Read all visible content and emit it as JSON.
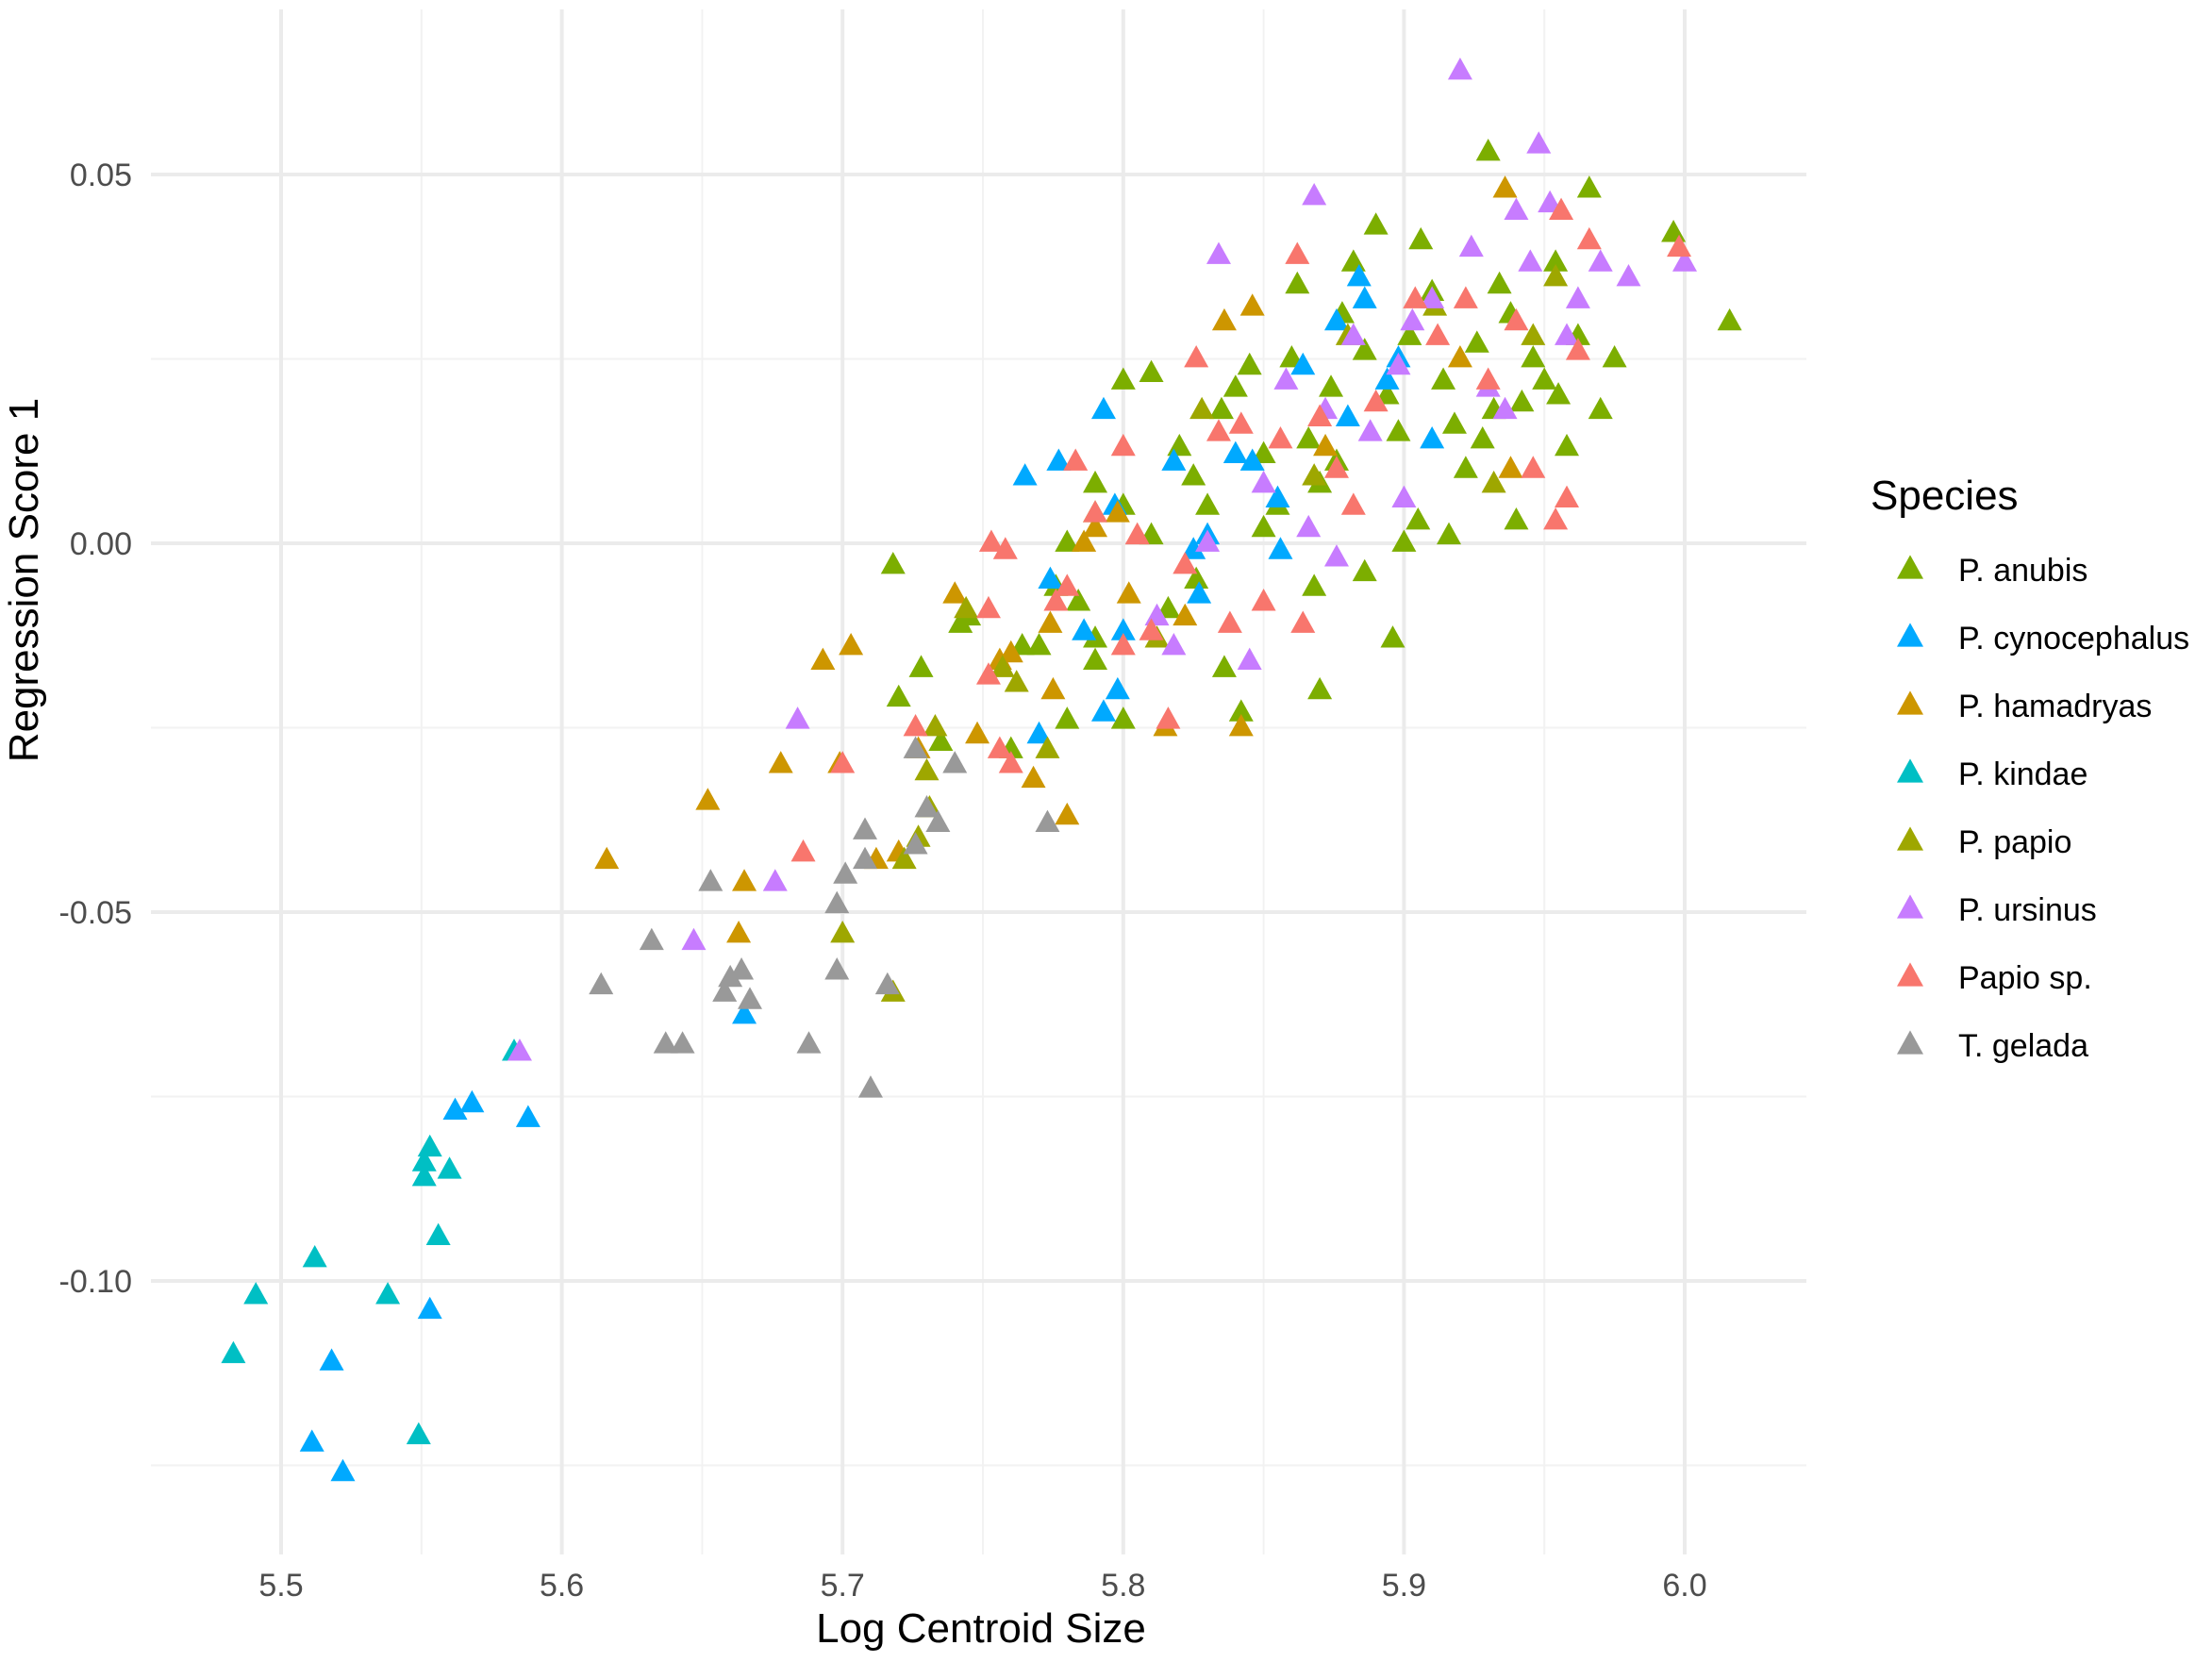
{
  "chart_data": {
    "type": "scatter",
    "xlabel": "Log Centroid Size",
    "ylabel": "Regression Score 1",
    "xlim": [
      5.46,
      6.04
    ],
    "ylim": [
      -0.137,
      0.07
    ],
    "xticks": [
      5.5,
      5.6,
      5.7,
      5.8,
      5.9,
      6.0
    ],
    "xtick_labels": [
      "5.5",
      "5.6",
      "5.7",
      "5.8",
      "5.9",
      "6.0"
    ],
    "yticks": [
      -0.1,
      -0.05,
      0.0,
      0.05
    ],
    "ytick_labels": [
      "-0.10",
      "-0.05",
      "0.00",
      "0.05"
    ],
    "grid": true,
    "marker": "triangle",
    "legend": {
      "title": "Species",
      "position": "right"
    },
    "series": [
      {
        "name": "P. anubis",
        "color": "#7CAE00",
        "points": [
          [
            5.718,
            -0.003
          ],
          [
            5.745,
            -0.01
          ],
          [
            5.728,
            -0.017
          ],
          [
            5.72,
            -0.021
          ],
          [
            5.78,
            0.0
          ],
          [
            5.79,
            -0.013
          ],
          [
            5.8,
            0.022
          ],
          [
            5.81,
            0.023
          ],
          [
            5.79,
            0.008
          ],
          [
            5.8,
            0.005
          ],
          [
            5.82,
            0.013
          ],
          [
            5.825,
            0.009
          ],
          [
            5.83,
            0.005
          ],
          [
            5.835,
            0.018
          ],
          [
            5.84,
            0.021
          ],
          [
            5.845,
            0.024
          ],
          [
            5.85,
            0.012
          ],
          [
            5.855,
            0.005
          ],
          [
            5.86,
            0.025
          ],
          [
            5.862,
            0.035
          ],
          [
            5.866,
            0.014
          ],
          [
            5.87,
            0.008
          ],
          [
            5.874,
            0.021
          ],
          [
            5.878,
            0.031
          ],
          [
            5.882,
            0.038
          ],
          [
            5.886,
            0.026
          ],
          [
            5.89,
            0.043
          ],
          [
            5.894,
            0.02
          ],
          [
            5.898,
            0.015
          ],
          [
            5.902,
            0.028
          ],
          [
            5.906,
            0.041
          ],
          [
            5.91,
            0.034
          ],
          [
            5.914,
            0.022
          ],
          [
            5.918,
            0.016
          ],
          [
            5.922,
            0.01
          ],
          [
            5.926,
            0.027
          ],
          [
            5.93,
            0.053
          ],
          [
            5.934,
            0.035
          ],
          [
            5.938,
            0.031
          ],
          [
            5.942,
            0.019
          ],
          [
            5.946,
            0.025
          ],
          [
            5.95,
            0.022
          ],
          [
            5.954,
            0.038
          ],
          [
            5.958,
            0.013
          ],
          [
            5.962,
            0.028
          ],
          [
            5.966,
            0.048
          ],
          [
            5.97,
            0.018
          ],
          [
            5.975,
            0.025
          ],
          [
            5.996,
            0.042
          ],
          [
            6.016,
            0.03
          ],
          [
            5.94,
            0.003
          ],
          [
            5.916,
            0.001
          ],
          [
            5.9,
            0.0
          ],
          [
            5.896,
            -0.013
          ],
          [
            5.87,
            -0.02
          ],
          [
            5.868,
            -0.006
          ],
          [
            5.886,
            -0.004
          ],
          [
            5.842,
            -0.023
          ],
          [
            5.836,
            -0.017
          ],
          [
            5.826,
            -0.005
          ],
          [
            5.816,
            -0.009
          ],
          [
            5.8,
            -0.024
          ],
          [
            5.79,
            -0.016
          ],
          [
            5.784,
            -0.008
          ],
          [
            5.776,
            -0.006
          ],
          [
            5.77,
            -0.014
          ],
          [
            5.78,
            -0.024
          ],
          [
            5.76,
            -0.028
          ],
          [
            5.742,
            -0.011
          ],
          [
            5.735,
            -0.027
          ],
          [
            5.764,
            -0.014
          ],
          [
            5.81,
            0.001
          ],
          [
            5.85,
            0.002
          ],
          [
            5.876,
            0.011
          ],
          [
            5.905,
            0.003
          ],
          [
            5.932,
            0.018
          ],
          [
            5.955,
            0.02
          ],
          [
            5.928,
            0.014
          ]
        ]
      },
      {
        "name": "P. cynocephalus",
        "color": "#00A9FF",
        "points": [
          [
            5.553,
            -0.104
          ],
          [
            5.518,
            -0.111
          ],
          [
            5.511,
            -0.122
          ],
          [
            5.522,
            -0.126
          ],
          [
            5.562,
            -0.077
          ],
          [
            5.568,
            -0.076
          ],
          [
            5.588,
            -0.078
          ],
          [
            5.665,
            -0.064
          ],
          [
            5.765,
            0.009
          ],
          [
            5.777,
            0.011
          ],
          [
            5.793,
            0.018
          ],
          [
            5.797,
            0.005
          ],
          [
            5.8,
            -0.012
          ],
          [
            5.798,
            -0.02
          ],
          [
            5.793,
            -0.023
          ],
          [
            5.77,
            -0.026
          ],
          [
            5.774,
            -0.005
          ],
          [
            5.786,
            -0.012
          ],
          [
            5.818,
            0.011
          ],
          [
            5.825,
            -0.001
          ],
          [
            5.827,
            -0.007
          ],
          [
            5.84,
            0.012
          ],
          [
            5.846,
            0.011
          ],
          [
            5.855,
            0.006
          ],
          [
            5.856,
            -0.001
          ],
          [
            5.864,
            0.024
          ],
          [
            5.876,
            0.03
          ],
          [
            5.88,
            0.017
          ],
          [
            5.884,
            0.036
          ],
          [
            5.886,
            0.033
          ],
          [
            5.894,
            0.022
          ],
          [
            5.898,
            0.025
          ],
          [
            5.91,
            0.014
          ],
          [
            5.83,
            0.001
          ]
        ]
      },
      {
        "name": "P. hamadryas",
        "color": "#CD9600",
        "points": [
          [
            5.616,
            -0.043
          ],
          [
            5.652,
            -0.035
          ],
          [
            5.665,
            -0.046
          ],
          [
            5.663,
            -0.053
          ],
          [
            5.678,
            -0.03
          ],
          [
            5.693,
            -0.016
          ],
          [
            5.703,
            -0.014
          ],
          [
            5.699,
            -0.03
          ],
          [
            5.712,
            -0.043
          ],
          [
            5.72,
            -0.042
          ],
          [
            5.727,
            -0.028
          ],
          [
            5.74,
            -0.007
          ],
          [
            5.748,
            -0.026
          ],
          [
            5.76,
            -0.015
          ],
          [
            5.768,
            -0.032
          ],
          [
            5.775,
            -0.02
          ],
          [
            5.78,
            -0.037
          ],
          [
            5.786,
            0.0
          ],
          [
            5.798,
            0.004
          ],
          [
            5.802,
            -0.007
          ],
          [
            5.815,
            -0.025
          ],
          [
            5.822,
            -0.01
          ],
          [
            5.836,
            0.03
          ],
          [
            5.842,
            -0.025
          ],
          [
            5.846,
            0.032
          ],
          [
            5.872,
            0.013
          ],
          [
            5.92,
            0.025
          ],
          [
            5.936,
            0.048
          ],
          [
            5.938,
            0.01
          ],
          [
            5.774,
            -0.011
          ],
          [
            5.756,
            -0.016
          ],
          [
            5.79,
            0.002
          ]
        ]
      },
      {
        "name": "P. kindae",
        "color": "#00BFC4",
        "points": [
          [
            5.483,
            -0.11
          ],
          [
            5.491,
            -0.102
          ],
          [
            5.512,
            -0.097
          ],
          [
            5.538,
            -0.102
          ],
          [
            5.549,
            -0.121
          ],
          [
            5.551,
            -0.086
          ],
          [
            5.553,
            -0.082
          ],
          [
            5.556,
            -0.094
          ],
          [
            5.56,
            -0.085
          ],
          [
            5.583,
            -0.069
          ],
          [
            5.551,
            -0.084
          ]
        ]
      },
      {
        "name": "P. papio",
        "color": "#9EA700",
        "points": [
          [
            5.7,
            -0.053
          ],
          [
            5.718,
            -0.061
          ],
          [
            5.722,
            -0.043
          ],
          [
            5.727,
            -0.04
          ],
          [
            5.73,
            -0.031
          ],
          [
            5.744,
            -0.009
          ],
          [
            5.757,
            -0.017
          ],
          [
            5.762,
            -0.019
          ],
          [
            5.773,
            -0.028
          ],
          [
            5.79,
            0.004
          ],
          [
            5.812,
            -0.013
          ],
          [
            5.828,
            0.018
          ],
          [
            5.868,
            0.009
          ],
          [
            5.88,
            0.028
          ],
          [
            5.932,
            0.008
          ],
          [
            5.946,
            0.028
          ],
          [
            5.954,
            0.036
          ],
          [
            5.911,
            0.032
          ],
          [
            5.731,
            -0.036
          ],
          [
            5.733,
            -0.025
          ]
        ]
      },
      {
        "name": "P. ursinus",
        "color": "#C77CFF",
        "points": [
          [
            5.585,
            -0.069
          ],
          [
            5.647,
            -0.054
          ],
          [
            5.676,
            -0.046
          ],
          [
            5.684,
            -0.024
          ],
          [
            5.812,
            -0.01
          ],
          [
            5.818,
            -0.014
          ],
          [
            5.83,
            0.0
          ],
          [
            5.834,
            0.039
          ],
          [
            5.845,
            -0.016
          ],
          [
            5.85,
            0.008
          ],
          [
            5.858,
            0.022
          ],
          [
            5.868,
            0.047
          ],
          [
            5.872,
            0.018
          ],
          [
            5.876,
            -0.002
          ],
          [
            5.882,
            0.028
          ],
          [
            5.888,
            0.015
          ],
          [
            5.898,
            0.024
          ],
          [
            5.903,
            0.03
          ],
          [
            5.91,
            0.033
          ],
          [
            5.92,
            0.064
          ],
          [
            5.924,
            0.04
          ],
          [
            5.93,
            0.021
          ],
          [
            5.936,
            0.018
          ],
          [
            5.94,
            0.045
          ],
          [
            5.945,
            0.038
          ],
          [
            5.948,
            0.054
          ],
          [
            5.952,
            0.046
          ],
          [
            5.958,
            0.028
          ],
          [
            5.962,
            0.033
          ],
          [
            5.97,
            0.038
          ],
          [
            5.98,
            0.036
          ],
          [
            6.0,
            0.038
          ],
          [
            5.866,
            0.002
          ],
          [
            5.9,
            0.006
          ]
        ]
      },
      {
        "name": "Papio sp.",
        "color": "#F8766D",
        "points": [
          [
            5.686,
            -0.042
          ],
          [
            5.7,
            -0.03
          ],
          [
            5.726,
            -0.025
          ],
          [
            5.752,
            -0.018
          ],
          [
            5.756,
            -0.028
          ],
          [
            5.76,
            -0.03
          ],
          [
            5.753,
            0.0
          ],
          [
            5.758,
            -0.001
          ],
          [
            5.752,
            -0.009
          ],
          [
            5.776,
            -0.008
          ],
          [
            5.783,
            0.011
          ],
          [
            5.79,
            0.004
          ],
          [
            5.8,
            0.013
          ],
          [
            5.805,
            0.001
          ],
          [
            5.81,
            -0.012
          ],
          [
            5.822,
            -0.003
          ],
          [
            5.826,
            0.025
          ],
          [
            5.834,
            0.015
          ],
          [
            5.838,
            -0.011
          ],
          [
            5.842,
            0.016
          ],
          [
            5.85,
            -0.008
          ],
          [
            5.856,
            0.014
          ],
          [
            5.862,
            0.039
          ],
          [
            5.864,
            -0.011
          ],
          [
            5.87,
            0.017
          ],
          [
            5.876,
            0.01
          ],
          [
            5.882,
            0.005
          ],
          [
            5.89,
            0.019
          ],
          [
            5.904,
            0.033
          ],
          [
            5.912,
            0.028
          ],
          [
            5.922,
            0.033
          ],
          [
            5.93,
            0.022
          ],
          [
            5.94,
            0.03
          ],
          [
            5.946,
            0.01
          ],
          [
            5.956,
            0.045
          ],
          [
            5.958,
            0.006
          ],
          [
            5.962,
            0.026
          ],
          [
            5.966,
            0.041
          ],
          [
            5.998,
            0.04
          ],
          [
            5.816,
            -0.024
          ],
          [
            5.8,
            -0.014
          ],
          [
            5.78,
            -0.006
          ],
          [
            5.954,
            0.003
          ]
        ]
      },
      {
        "name": "T. gelada",
        "color": "#999999",
        "points": [
          [
            5.614,
            -0.06
          ],
          [
            5.632,
            -0.054
          ],
          [
            5.637,
            -0.068
          ],
          [
            5.643,
            -0.068
          ],
          [
            5.653,
            -0.046
          ],
          [
            5.658,
            -0.061
          ],
          [
            5.66,
            -0.059
          ],
          [
            5.664,
            -0.058
          ],
          [
            5.667,
            -0.062
          ],
          [
            5.688,
            -0.068
          ],
          [
            5.698,
            -0.049
          ],
          [
            5.698,
            -0.058
          ],
          [
            5.701,
            -0.045
          ],
          [
            5.708,
            -0.043
          ],
          [
            5.708,
            -0.039
          ],
          [
            5.71,
            -0.074
          ],
          [
            5.716,
            -0.06
          ],
          [
            5.726,
            -0.041
          ],
          [
            5.726,
            -0.028
          ],
          [
            5.73,
            -0.036
          ],
          [
            5.734,
            -0.038
          ],
          [
            5.74,
            -0.03
          ],
          [
            5.773,
            -0.038
          ]
        ]
      }
    ]
  }
}
